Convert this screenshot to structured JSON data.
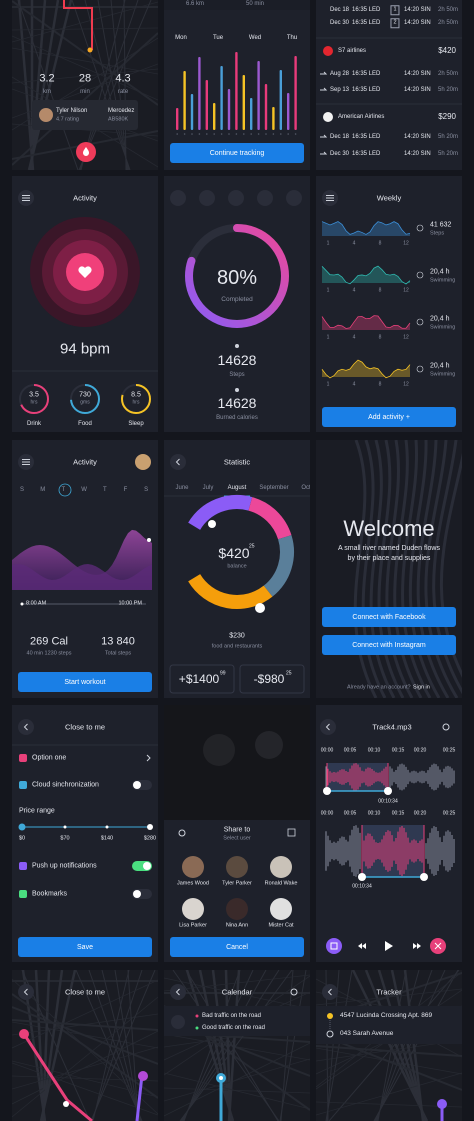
{
  "ride": {
    "stats": [
      {
        "value": "3.2",
        "unit": "km"
      },
      {
        "value": "28",
        "unit": "min"
      },
      {
        "value": "4.3",
        "unit": "rate"
      }
    ],
    "driver": "Tyler Nilson",
    "rating": "4.7 rating",
    "car": "Mercedez",
    "plate": "AB580K"
  },
  "tracking": {
    "distance": "6.6 km",
    "time": "50 min",
    "days": [
      "Mon",
      "Tue",
      "Wed",
      "Thu"
    ],
    "button": "Continue tracking"
  },
  "flights": {
    "top": [
      {
        "date": "Dec 18",
        "dep": "16:35 LED",
        "stop": "1",
        "arr": "14:20 SIN",
        "dur": "2h 50m"
      },
      {
        "date": "Dec 30",
        "dep": "16:35 LED",
        "stop": "2",
        "arr": "14:20 SIN",
        "dur": "2h 50m"
      }
    ],
    "offers": [
      {
        "airline": "S7 airlines",
        "price": "$420",
        "legs": [
          {
            "date": "Aug 28",
            "dep": "16:35 LED",
            "arr": "14:20 SIN",
            "dur": "2h 50m"
          },
          {
            "date": "Sep 13",
            "dep": "16:35 LED",
            "arr": "14:20 SIN",
            "dur": "5h 20m"
          }
        ]
      },
      {
        "airline": "American Airlines",
        "price": "$290",
        "legs": [
          {
            "date": "Dec 18",
            "dep": "16:35 LED",
            "arr": "14:20 SIN",
            "dur": "5h 20m"
          },
          {
            "date": "Dec 30",
            "dep": "16:35 LED",
            "arr": "14:20 SIN",
            "dur": "5h 20m"
          }
        ]
      }
    ]
  },
  "activity": {
    "title": "Activity",
    "bpm": "94 bpm",
    "rings": [
      {
        "value": "3.5",
        "unit": "hrs",
        "label": "Drink"
      },
      {
        "value": "730",
        "unit": "gms",
        "label": "Food"
      },
      {
        "value": "8.5",
        "unit": "hrs",
        "label": "Sleep"
      }
    ]
  },
  "progress": {
    "percent": "80%",
    "status": "Completed",
    "metrics": [
      {
        "value": "14628",
        "label": "Steps"
      },
      {
        "value": "14628",
        "label": "Burned calories"
      }
    ]
  },
  "weekly": {
    "title": "Weekly",
    "items": [
      {
        "value": "41 632",
        "label": "Steps"
      },
      {
        "value": "20,4 h",
        "label": "Swimming"
      },
      {
        "value": "20,4 h",
        "label": "Swimming"
      },
      {
        "value": "20,4 h",
        "label": "Swimming"
      }
    ],
    "axis": [
      "1",
      "4",
      "8",
      "12"
    ],
    "button": "Add activity +"
  },
  "workout": {
    "title": "Activity",
    "days": [
      "S",
      "M",
      "T",
      "W",
      "T",
      "F",
      "S"
    ],
    "start": "8:00 AM",
    "end": "10:00 PM",
    "stats": [
      {
        "value": "269 Cal",
        "label": "40 min 1230 steps"
      },
      {
        "value": "13 840",
        "label": "Total steps"
      }
    ],
    "button": "Start workout"
  },
  "statistic": {
    "title": "Statistic",
    "months": [
      "June",
      "July",
      "August",
      "September",
      "Oct"
    ],
    "balance": "$420",
    "balance_cents": "25",
    "balance_label": "balance",
    "spent": "$230",
    "spent_label": "food and restaurants",
    "income": "+$1400",
    "income_cents": "99",
    "expense": "-$980",
    "expense_cents": "25"
  },
  "welcome": {
    "title": "Welcome",
    "text": "A small river named Duden flows by their place and supplies",
    "facebook": "Connect with Facebook",
    "instagram": "Connect with Instagram",
    "question": "Already have an account?",
    "signin": "Sign in"
  },
  "settings": {
    "title": "Close to me",
    "option": "Option one",
    "sync": "Cloud sinchronization",
    "price_label": "Price range",
    "prices": [
      "$0",
      "$70",
      "$140",
      "$280"
    ],
    "push": "Push up notifications",
    "bookmarks": "Bookmarks",
    "button": "Save"
  },
  "share": {
    "title": "Share to",
    "subtitle": "Select user",
    "users": [
      "James Wood",
      "Tyler Parker",
      "Ronald Wake",
      "Lisa Parker",
      "Nina Ann",
      "Mister Cat"
    ],
    "button": "Cancel"
  },
  "player": {
    "title": "Track4.mp3",
    "times": [
      "00:00",
      "00:05",
      "00:10",
      "00:15",
      "00:20",
      "00:25"
    ],
    "markers": [
      "00:10:34",
      "00:10:34"
    ]
  },
  "map": {
    "title": "Close to me"
  },
  "calendar": {
    "title": "Calendar",
    "alerts": [
      "Bad traffic on the road",
      "Good traffic on the road"
    ]
  },
  "tracker": {
    "title": "Tracker",
    "stops": [
      "4547 Lucinda Crossing Apt. 869",
      "043 Sarah Avenue"
    ]
  }
}
